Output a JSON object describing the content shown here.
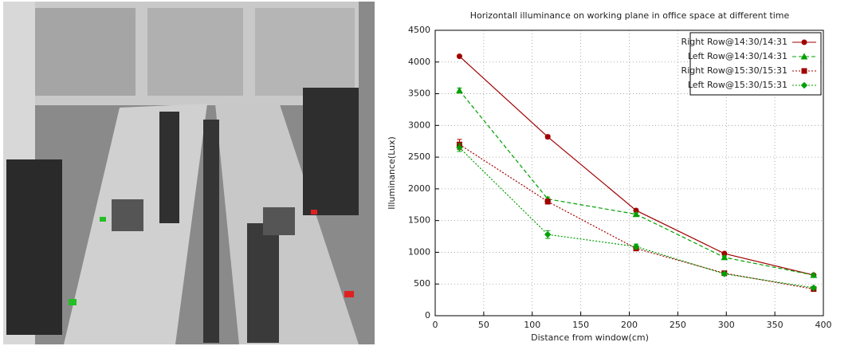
{
  "chart_data": {
    "type": "line",
    "title": "Horizontall illuminance on working plane in office space at different time",
    "x_label": "Distance from window(cm)",
    "y_label": "Illuminance(Lux)",
    "x": [
      25,
      116,
      207,
      298,
      390
    ],
    "series": [
      {
        "name": "Right Row@14:30/14:31",
        "color": "#a00000",
        "line_style": "solid",
        "marker": "circle",
        "values": [
          4090,
          2820,
          1660,
          980,
          640
        ],
        "errors": [
          20,
          30,
          20,
          20,
          15
        ]
      },
      {
        "name": "Left Row@14:30/14:31",
        "color": "#00a000",
        "line_style": "dashed",
        "marker": "triangle",
        "values": [
          3550,
          1840,
          1600,
          920,
          640
        ],
        "errors": [
          40,
          30,
          20,
          20,
          15
        ]
      },
      {
        "name": "Right Row@15:30/15:31",
        "color": "#a00000",
        "line_style": "dotted",
        "marker": "square",
        "values": [
          2700,
          1800,
          1060,
          670,
          420
        ],
        "errors": [
          80,
          40,
          30,
          20,
          20
        ]
      },
      {
        "name": "Left Row@15:30/15:31",
        "color": "#00a000",
        "line_style": "dotted",
        "marker": "diamond",
        "values": [
          2650,
          1280,
          1090,
          660,
          440
        ],
        "errors": [
          60,
          60,
          40,
          20,
          20
        ]
      }
    ],
    "xlim": [
      0,
      400
    ],
    "xticks": [
      0,
      50,
      100,
      150,
      200,
      250,
      300,
      350,
      400
    ],
    "ylim": [
      0,
      4500
    ],
    "yticks": [
      0,
      500,
      1000,
      1500,
      2000,
      2500,
      3000,
      3500,
      4000,
      4500
    ],
    "grid": true,
    "legend": "upper-right"
  }
}
